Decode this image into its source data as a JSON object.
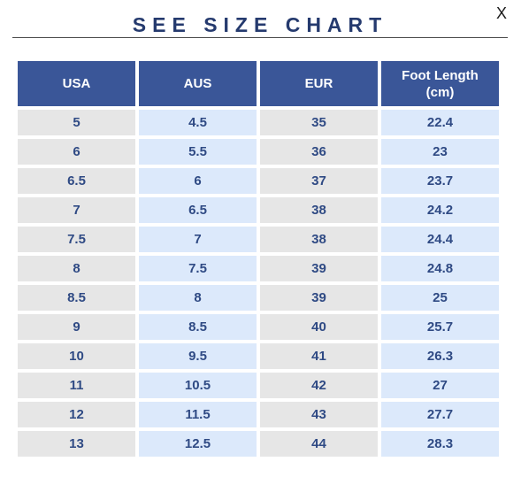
{
  "modal": {
    "title": "SEE SIZE CHART",
    "close_label": "X"
  },
  "table": {
    "headers": {
      "usa": "USA",
      "aus": "AUS",
      "eur": "EUR",
      "foot_length_line1": "Foot Length",
      "foot_length_line2": "(cm)"
    },
    "rows": [
      {
        "usa": "5",
        "aus": "4.5",
        "eur": "35",
        "cm": "22.4"
      },
      {
        "usa": "6",
        "aus": "5.5",
        "eur": "36",
        "cm": "23"
      },
      {
        "usa": "6.5",
        "aus": "6",
        "eur": "37",
        "cm": "23.7"
      },
      {
        "usa": "7",
        "aus": "6.5",
        "eur": "38",
        "cm": "24.2"
      },
      {
        "usa": "7.5",
        "aus": "7",
        "eur": "38",
        "cm": "24.4"
      },
      {
        "usa": "8",
        "aus": "7.5",
        "eur": "39",
        "cm": "24.8"
      },
      {
        "usa": "8.5",
        "aus": "8",
        "eur": "39",
        "cm": "25"
      },
      {
        "usa": "9",
        "aus": "8.5",
        "eur": "40",
        "cm": "25.7"
      },
      {
        "usa": "10",
        "aus": "9.5",
        "eur": "41",
        "cm": "26.3"
      },
      {
        "usa": "11",
        "aus": "10.5",
        "eur": "42",
        "cm": "27"
      },
      {
        "usa": "12",
        "aus": "11.5",
        "eur": "43",
        "cm": "27.7"
      },
      {
        "usa": "13",
        "aus": "12.5",
        "eur": "44",
        "cm": "28.3"
      }
    ]
  },
  "colors": {
    "title_text": "#253a6e",
    "header_bg": "#3a5698",
    "header_text": "#ffffff",
    "cell_gray": "#e6e6e6",
    "cell_blue": "#dce9fb",
    "cell_text": "#2f4a84"
  }
}
